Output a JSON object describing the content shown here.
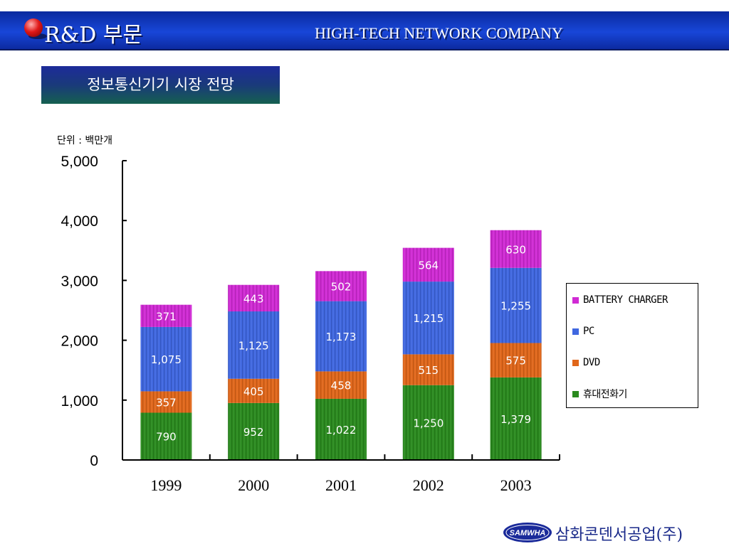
{
  "header": {
    "title": "R&D 부문",
    "company": "HIGH-TECH NETWORK COMPANY"
  },
  "section_title": "정보통신기기 시장 전망",
  "unit_label": "단위 : 백만개",
  "chart_data": {
    "type": "bar",
    "stacked": true,
    "categories": [
      "1999",
      "2000",
      "2001",
      "2002",
      "2003"
    ],
    "series": [
      {
        "name": "휴대전화기",
        "color": "#2a8a1e",
        "values": [
          790,
          952,
          1022,
          1250,
          1379
        ],
        "labels": [
          "790",
          "952",
          "1,022",
          "1,250",
          "1,379"
        ]
      },
      {
        "name": "DVD",
        "color": "#e0661a",
        "values": [
          357,
          405,
          458,
          515,
          575
        ],
        "labels": [
          "357",
          "405",
          "458",
          "515",
          "575"
        ]
      },
      {
        "name": "PC",
        "color": "#3f67e0",
        "values": [
          1075,
          1125,
          1173,
          1215,
          1255
        ],
        "labels": [
          "1,075",
          "1,125",
          "1,173",
          "1,215",
          "1,255"
        ]
      },
      {
        "name": "BATTERY CHARGER",
        "color": "#d02ad4",
        "values": [
          371,
          443,
          502,
          564,
          630
        ],
        "labels": [
          "371",
          "443",
          "502",
          "564",
          "630"
        ]
      }
    ],
    "ylim": [
      0,
      5000
    ],
    "yticks": [
      0,
      1000,
      2000,
      3000,
      4000,
      5000
    ],
    "ytick_labels": [
      "0",
      "1,000",
      "2,000",
      "3,000",
      "4,000",
      "5,000"
    ],
    "legend_order": [
      "BATTERY CHARGER",
      "PC",
      "DVD",
      "휴대전화기"
    ],
    "legend_position": "right",
    "grid": false
  },
  "footer": {
    "logo_text": "SAMWHA",
    "company": "삼화콘덴서공업(주)"
  }
}
